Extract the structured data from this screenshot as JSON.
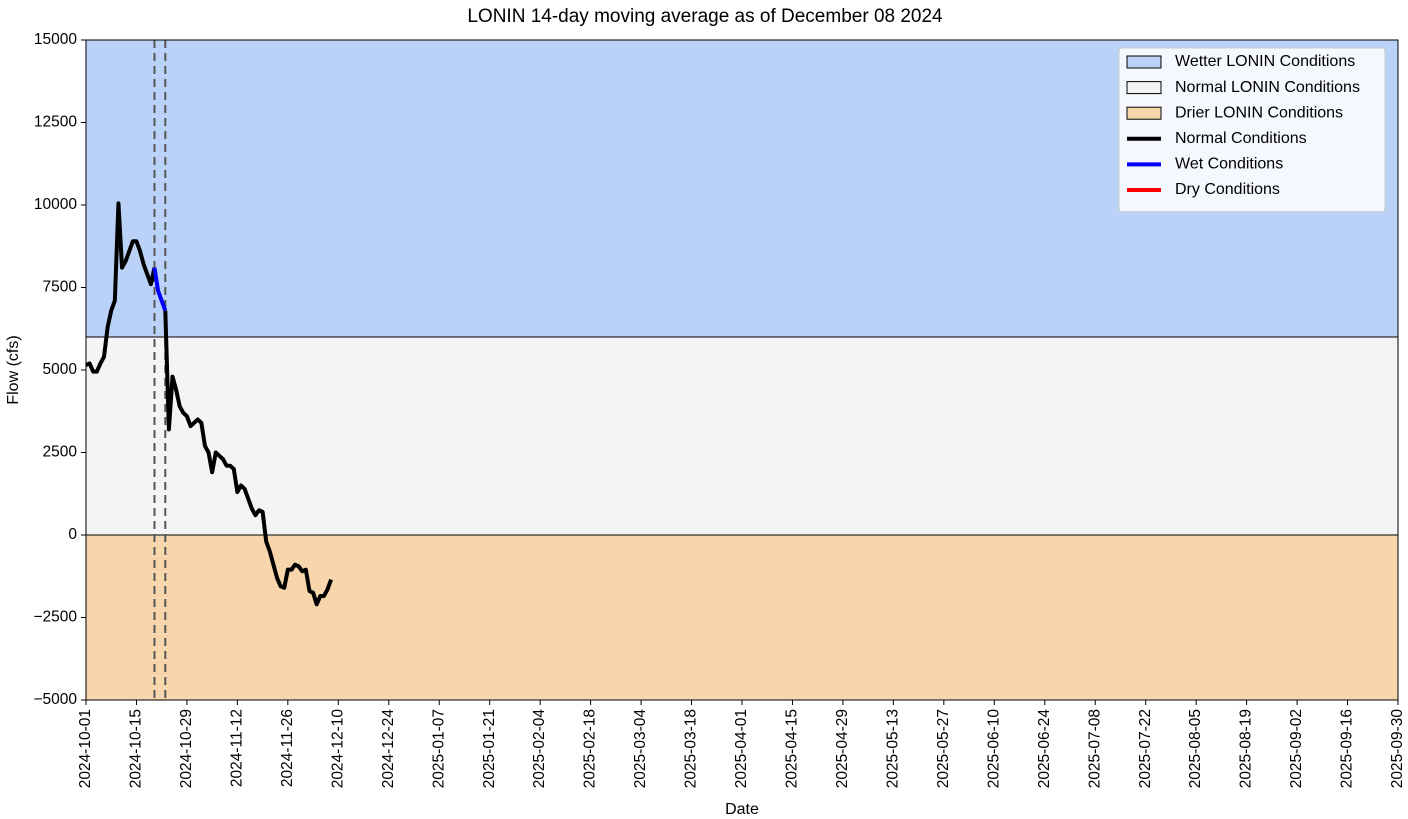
{
  "chart_data": {
    "type": "line",
    "title": "LONIN 14-day moving average as of December 08 2024",
    "xlabel": "Date",
    "ylabel": "Flow (cfs)",
    "x": [
      "2024-10-01",
      "2024-10-02",
      "2024-10-03",
      "2024-10-04",
      "2024-10-05",
      "2024-10-06",
      "2024-10-07",
      "2024-10-08",
      "2024-10-09",
      "2024-10-10",
      "2024-10-11",
      "2024-10-12",
      "2024-10-13",
      "2024-10-14",
      "2024-10-15",
      "2024-10-16",
      "2024-10-17",
      "2024-10-18",
      "2024-10-19",
      "2024-10-20",
      "2024-10-21",
      "2024-10-22",
      "2024-10-23",
      "2024-10-24",
      "2024-10-25",
      "2024-10-26",
      "2024-10-27",
      "2024-10-28",
      "2024-10-29",
      "2024-10-30",
      "2024-10-31",
      "2024-11-01",
      "2024-11-02",
      "2024-11-03",
      "2024-11-04",
      "2024-11-05",
      "2024-11-06",
      "2024-11-07",
      "2024-11-08",
      "2024-11-09",
      "2024-11-10",
      "2024-11-11",
      "2024-11-12",
      "2024-11-13",
      "2024-11-14",
      "2024-11-15",
      "2024-11-16",
      "2024-11-17",
      "2024-11-18",
      "2024-11-19",
      "2024-11-20",
      "2024-11-21",
      "2024-11-22",
      "2024-11-23",
      "2024-11-24",
      "2024-11-25",
      "2024-11-26",
      "2024-11-27",
      "2024-11-28",
      "2024-11-29",
      "2024-11-30",
      "2024-12-01",
      "2024-12-02",
      "2024-12-03",
      "2024-12-04",
      "2024-12-05",
      "2024-12-06",
      "2024-12-07",
      "2024-12-08"
    ],
    "series": [
      {
        "name": "Normal Conditions",
        "color": "#000000",
        "values": [
          5150,
          5200,
          4950,
          4950,
          5200,
          5400,
          6300,
          6800,
          7100,
          10050,
          8100,
          8300,
          8600,
          8900,
          8900,
          8600,
          8200,
          7900,
          7600,
          8100,
          null,
          null,
          6800,
          3200,
          4800,
          4400,
          3900,
          3700,
          3600,
          3300,
          3400,
          3500,
          3400,
          2700,
          2500,
          1900,
          2500,
          2400,
          2300,
          2100,
          2100,
          2000,
          1300,
          1500,
          1400,
          1100,
          800,
          600,
          750,
          700,
          -200,
          -500,
          -900,
          -1300,
          -1550,
          -1600,
          -1050,
          -1050,
          -900,
          -950,
          -1100,
          -1050,
          -1700,
          -1750,
          -2100,
          -1850,
          -1850,
          -1650,
          -1350
        ]
      },
      {
        "name": "Wet Conditions",
        "color": "#0000ff",
        "values": [
          null,
          null,
          null,
          null,
          null,
          null,
          null,
          null,
          null,
          null,
          null,
          null,
          null,
          null,
          null,
          null,
          null,
          null,
          null,
          8100,
          7400,
          7100,
          6800,
          null,
          null,
          null,
          null,
          null,
          null,
          null,
          null,
          null,
          null,
          null,
          null,
          null,
          null,
          null,
          null,
          null,
          null,
          null,
          null,
          null,
          null,
          null,
          null,
          null,
          null,
          null,
          null,
          null,
          null,
          null,
          null,
          null,
          null,
          null,
          null,
          null,
          null,
          null,
          null,
          null,
          null,
          null,
          null,
          null,
          null
        ]
      },
      {
        "name": "Dry Conditions",
        "color": "#ff0000",
        "values": [
          null,
          null,
          null,
          null,
          null,
          null,
          null,
          null,
          null,
          null,
          null,
          null,
          null,
          null,
          null,
          null,
          null,
          null,
          null,
          null,
          null,
          null,
          null,
          null,
          null,
          null,
          null,
          null,
          null,
          null,
          null,
          null,
          null,
          null,
          null,
          null,
          null,
          null,
          null,
          null,
          null,
          null,
          null,
          null,
          null,
          null,
          null,
          null,
          null,
          null,
          null,
          null,
          null,
          null,
          null,
          null,
          null,
          null,
          null,
          null,
          null,
          null,
          null,
          null,
          null,
          null,
          null,
          null,
          null
        ]
      }
    ],
    "bands": [
      {
        "name": "Wetter LONIN Conditions",
        "color": "#bbd2f8",
        "range": [
          6000,
          15000
        ]
      },
      {
        "name": "Normal LONIN Conditions",
        "color": "#f4f4f4",
        "range": [
          0,
          6000
        ]
      },
      {
        "name": "Drier LONIN Conditions",
        "color": "#f8d6ac",
        "range": [
          -5000,
          0
        ]
      }
    ],
    "vlines": [
      "2024-10-20",
      "2024-10-23"
    ],
    "xlim": [
      "2024-10-01",
      "2025-09-30"
    ],
    "xticks": [
      "2024-10-01",
      "2024-10-15",
      "2024-10-29",
      "2024-11-12",
      "2024-11-26",
      "2024-12-10",
      "2024-12-24",
      "2025-01-07",
      "2025-01-21",
      "2025-02-04",
      "2025-02-18",
      "2025-03-04",
      "2025-03-18",
      "2025-04-01",
      "2025-04-15",
      "2025-04-29",
      "2025-05-13",
      "2025-05-27",
      "2025-06-10",
      "2025-06-24",
      "2025-07-08",
      "2025-07-22",
      "2025-08-05",
      "2025-08-19",
      "2025-09-02",
      "2025-09-16",
      "2025-09-30"
    ],
    "ylim": [
      -5000,
      15000
    ],
    "yticks": [
      {
        "value": -5000,
        "label": "−5000"
      },
      {
        "value": -2500,
        "label": "−2500"
      },
      0,
      2500,
      5000,
      7500,
      10000,
      12500,
      15000
    ],
    "legend": "upper right"
  }
}
